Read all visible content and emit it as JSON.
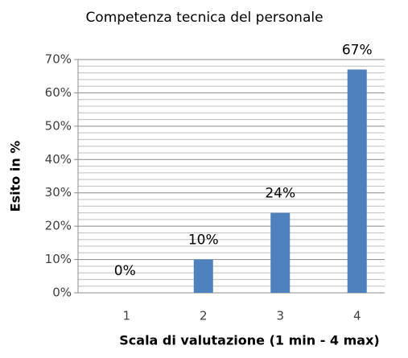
{
  "chart_data": {
    "type": "bar",
    "title": "Competenza tecnica del personale",
    "x_label": "Scala di valutazione (1 min - 4 max)",
    "y_label": "Esito in %",
    "categories": [
      "1",
      "2",
      "3",
      "4"
    ],
    "values": [
      0,
      10,
      24,
      67
    ],
    "value_labels": [
      "0%",
      "10%",
      "24%",
      "67%"
    ],
    "color": "#4f81bd",
    "ylim": [
      0,
      70
    ],
    "yticks": [
      {
        "value": 0,
        "label": "0%"
      },
      {
        "value": 10,
        "label": "10%"
      },
      {
        "value": 20,
        "label": "20%"
      },
      {
        "value": 30,
        "label": "30%"
      },
      {
        "value": 40,
        "label": "40%"
      },
      {
        "value": 50,
        "label": "50%"
      },
      {
        "value": 60,
        "label": "60%"
      },
      {
        "value": 70,
        "label": "70%"
      }
    ],
    "grid": true
  }
}
